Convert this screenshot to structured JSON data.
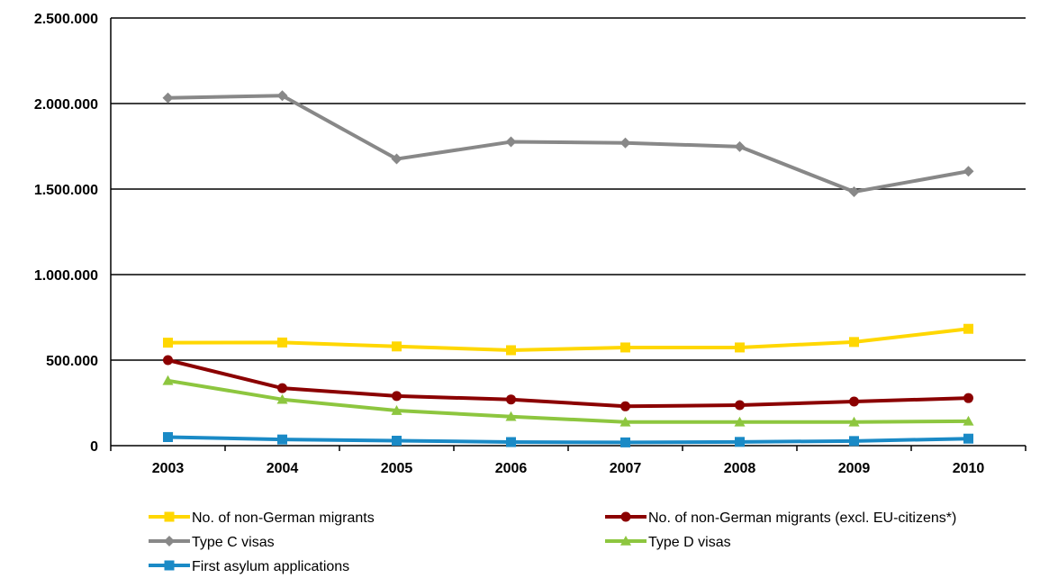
{
  "chart_data": {
    "type": "line",
    "title": "",
    "xlabel": "",
    "ylabel": "",
    "x": [
      "2003",
      "2004",
      "2005",
      "2006",
      "2007",
      "2008",
      "2009",
      "2010"
    ],
    "ylim": [
      0,
      2500000
    ],
    "yticks": [
      0,
      500000,
      1000000,
      1500000,
      2000000,
      2500000
    ],
    "ytick_labels": [
      "0",
      "500.000",
      "1.000.000",
      "1.500.000",
      "2.000.000",
      "2.500.000"
    ],
    "grid": true,
    "legend_position": "bottom",
    "series": [
      {
        "name": "No. of non-German migrants",
        "color": "#ffd700",
        "marker": "square",
        "values": [
          602000,
          603000,
          580000,
          558000,
          574000,
          574000,
          606000,
          683000
        ]
      },
      {
        "name": "No. of non-German migrants (excl. EU-citizens*)",
        "color": "#8b0000",
        "marker": "circle",
        "values": [
          500000,
          336000,
          290000,
          270000,
          230000,
          237000,
          258000,
          278000
        ]
      },
      {
        "name": "Type C visas",
        "color": "#888888",
        "marker": "diamond",
        "values": [
          2033000,
          2046000,
          1676000,
          1776000,
          1770000,
          1748000,
          1484000,
          1604000
        ]
      },
      {
        "name": "Type D visas",
        "color": "#8dc63f",
        "marker": "triangle",
        "values": [
          380000,
          270000,
          205000,
          170000,
          138000,
          138000,
          138000,
          143000
        ]
      },
      {
        "name": "First asylum applications",
        "color": "#1a8ac6",
        "marker": "square",
        "values": [
          50000,
          36000,
          29000,
          21000,
          19000,
          22000,
          27000,
          41000
        ]
      }
    ]
  }
}
